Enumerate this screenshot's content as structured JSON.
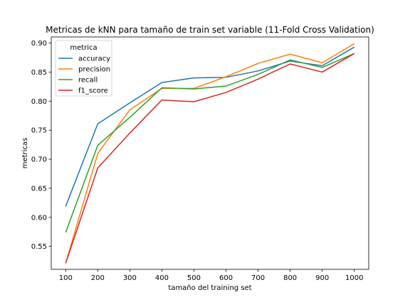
{
  "chart_data": {
    "type": "line",
    "title": "Metricas de kNN para tamaño de train set variable (11-Fold Cross Validation)",
    "xlabel": "tamaño del training set",
    "ylabel": "metricas",
    "x": [
      100,
      200,
      300,
      400,
      500,
      600,
      700,
      800,
      900,
      1000
    ],
    "xlim": [
      55,
      1045
    ],
    "ylim": [
      0.5105,
      0.9105
    ],
    "xticks": [
      100,
      200,
      300,
      400,
      500,
      600,
      700,
      800,
      900,
      1000
    ],
    "yticks": [
      0.55,
      0.6,
      0.65,
      0.7,
      0.75,
      0.8,
      0.85,
      0.9
    ],
    "ytick_labels": [
      "0.55",
      "0.60",
      "0.65",
      "0.70",
      "0.75",
      "0.80",
      "0.85",
      "0.90"
    ],
    "grid": false,
    "legend": {
      "title": "metrica",
      "location": "top-left"
    },
    "series": [
      {
        "name": "accuracy",
        "color": "#1f77b4",
        "values": [
          0.619,
          0.761,
          0.797,
          0.832,
          0.84,
          0.841,
          0.852,
          0.869,
          0.861,
          0.893
        ]
      },
      {
        "name": "precision",
        "color": "#ff7f0e",
        "values": [
          0.521,
          0.71,
          0.785,
          0.822,
          0.822,
          0.842,
          0.865,
          0.881,
          0.866,
          0.899
        ]
      },
      {
        "name": "recall",
        "color": "#2ca02c",
        "values": [
          0.574,
          0.724,
          0.772,
          0.823,
          0.821,
          0.826,
          0.846,
          0.871,
          0.858,
          0.882
        ]
      },
      {
        "name": "f1_score",
        "color": "#d62728",
        "values": [
          0.521,
          0.685,
          0.745,
          0.802,
          0.799,
          0.815,
          0.838,
          0.864,
          0.85,
          0.882
        ]
      }
    ]
  }
}
